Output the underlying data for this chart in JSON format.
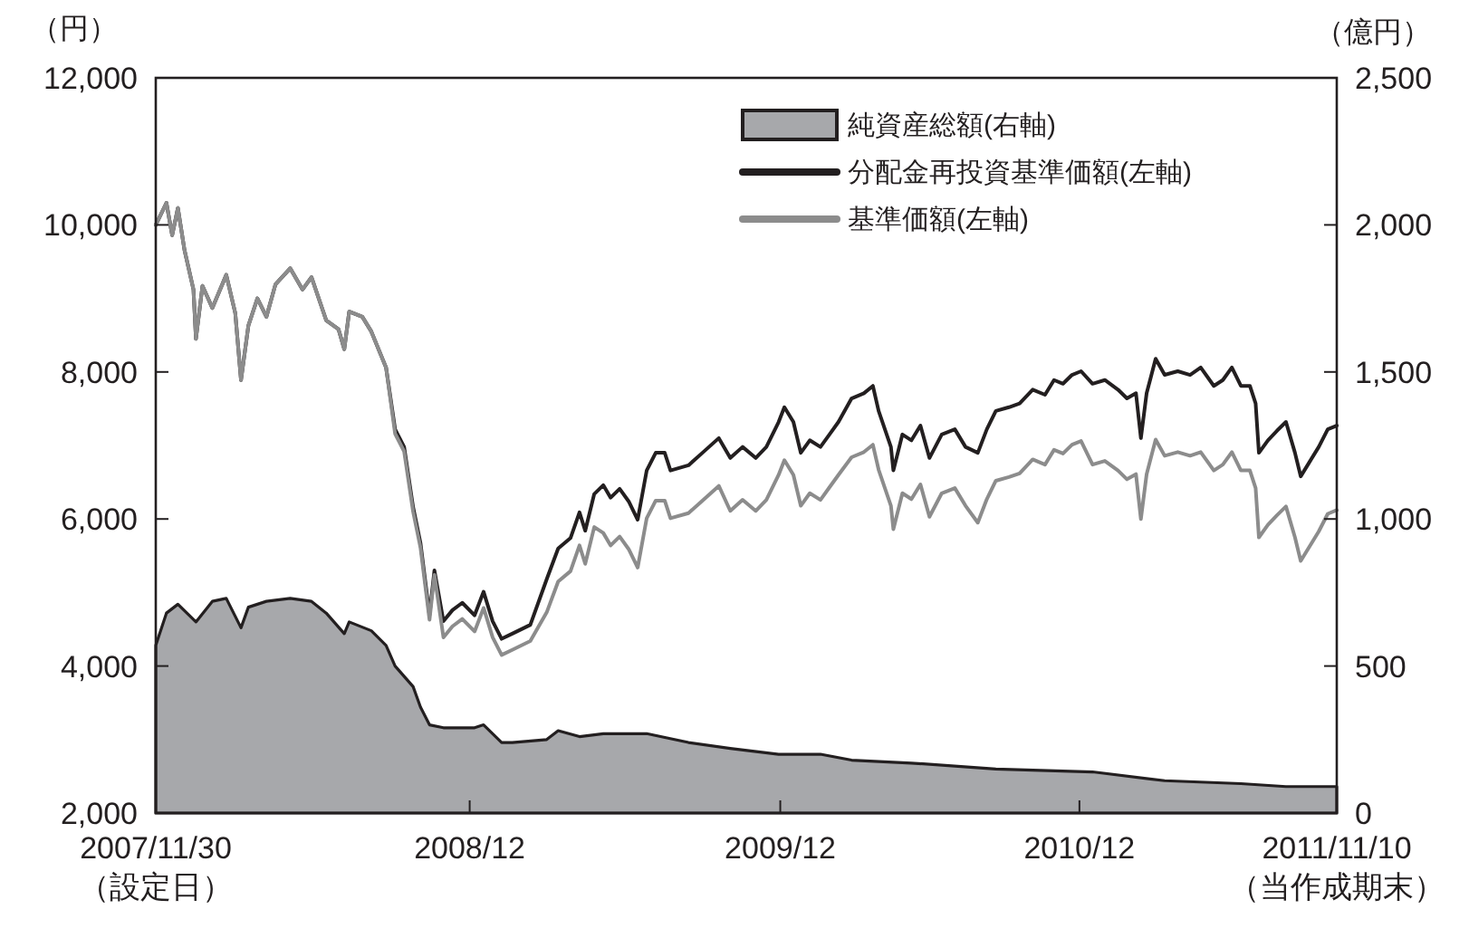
{
  "chart_data": {
    "type": "line",
    "ylabel": "（円）",
    "y2label": "（億円）",
    "x": [
      "2007-11-30",
      "2007-12-13",
      "2007-12-20",
      "2007-12-27",
      "2008-01-04",
      "2008-01-15",
      "2008-01-18",
      "2008-01-26",
      "2008-02-07",
      "2008-02-24",
      "2008-03-06",
      "2008-03-13",
      "2008-03-22",
      "2008-04-02",
      "2008-04-13",
      "2008-04-24",
      "2008-05-12",
      "2008-05-27",
      "2008-06-07",
      "2008-06-25",
      "2008-07-10",
      "2008-07-17",
      "2008-07-23",
      "2008-08-08",
      "2008-08-19",
      "2008-09-06",
      "2008-09-17",
      "2008-09-28",
      "2008-10-09",
      "2008-10-18",
      "2008-10-29",
      "2008-11-04",
      "2008-11-15",
      "2008-11-26",
      "2008-12-08",
      "2008-12-23",
      "2009-01-03",
      "2009-01-14",
      "2009-01-25",
      "2009-02-07",
      "2009-03-01",
      "2009-03-21",
      "2009-04-04",
      "2009-04-19",
      "2009-04-30",
      "2009-05-07",
      "2009-05-18",
      "2009-05-29",
      "2009-06-07",
      "2009-06-18",
      "2009-06-29",
      "2009-07-10",
      "2009-07-21",
      "2009-08-01",
      "2009-08-12",
      "2009-08-19",
      "2009-09-10",
      "2009-09-27",
      "2009-10-17",
      "2009-10-31",
      "2009-11-15",
      "2009-12-01",
      "2009-12-14",
      "2009-12-29",
      "2010-01-05",
      "2010-01-16",
      "2010-01-25",
      "2010-02-05",
      "2010-02-18",
      "2010-03-01",
      "2010-03-12",
      "2010-03-28",
      "2010-04-12",
      "2010-04-23",
      "2010-04-30",
      "2010-05-15",
      "2010-05-18",
      "2010-05-29",
      "2010-06-09",
      "2010-06-20",
      "2010-07-01",
      "2010-07-16",
      "2010-08-01",
      "2010-08-14",
      "2010-08-29",
      "2010-09-09",
      "2010-09-20",
      "2010-10-06",
      "2010-10-19",
      "2010-11-04",
      "2010-11-19",
      "2010-11-30",
      "2010-12-11",
      "2010-12-22",
      "2011-01-02",
      "2011-01-16",
      "2011-01-31",
      "2011-02-16",
      "2011-02-27",
      "2011-03-10",
      "2011-03-16",
      "2011-03-23",
      "2011-04-03",
      "2011-04-14",
      "2011-04-30",
      "2011-05-15",
      "2011-05-28",
      "2011-06-13",
      "2011-06-24",
      "2011-07-05",
      "2011-07-16",
      "2011-07-27",
      "2011-08-03",
      "2011-08-07",
      "2011-08-18",
      "2011-08-29",
      "2011-09-09",
      "2011-09-20",
      "2011-09-27",
      "2011-10-08",
      "2011-10-19",
      "2011-10-30",
      "2011-11-10"
    ],
    "xlim": [
      "2007-11-30",
      "2011-11-10"
    ],
    "xticks": [
      {
        "value": "2007-11-30",
        "label": "2007/11/30\n（設定日）"
      },
      {
        "value": "2008-12-17",
        "label": "2008/12"
      },
      {
        "value": "2009-12-31",
        "label": "2009/12"
      },
      {
        "value": "2010-12-31",
        "label": "2010/12"
      },
      {
        "value": "2011-11-10",
        "label": "2011/11/10\n（当作成期末）"
      }
    ],
    "ylim": [
      2000,
      12000
    ],
    "yticks": [
      {
        "value": 2000,
        "label": "2,000"
      },
      {
        "value": 4000,
        "label": "4,000"
      },
      {
        "value": 6000,
        "label": "6,000"
      },
      {
        "value": 8000,
        "label": "8,000"
      },
      {
        "value": 10000,
        "label": "10,000"
      },
      {
        "value": 12000,
        "label": "12,000"
      }
    ],
    "y2lim": [
      0,
      2500
    ],
    "y2ticks": [
      0,
      500,
      {
        "value": 1000,
        "label": "1,000"
      },
      {
        "value": 1500,
        "label": "1,500"
      },
      {
        "value": 2000,
        "label": "2,000"
      },
      {
        "value": 2500,
        "label": "2,500"
      }
    ],
    "legend": "top right",
    "series": [
      {
        "name": "純資産総額(右軸)",
        "type": "area",
        "axis": "y2",
        "color": "#a7a8ab",
        "x": [
          "2007-11-30",
          "2007-12-13",
          "2007-12-27",
          "2008-01-18",
          "2008-02-07",
          "2008-02-24",
          "2008-03-13",
          "2008-03-22",
          "2008-04-13",
          "2008-05-12",
          "2008-06-07",
          "2008-06-25",
          "2008-07-17",
          "2008-07-23",
          "2008-08-19",
          "2008-09-06",
          "2008-09-17",
          "2008-10-09",
          "2008-10-18",
          "2008-10-29",
          "2008-11-15",
          "2008-12-23",
          "2009-01-03",
          "2009-01-25",
          "2009-02-07",
          "2009-03-21",
          "2009-04-04",
          "2009-04-30",
          "2009-05-29",
          "2009-07-21",
          "2009-09-10",
          "2009-10-31",
          "2009-12-29",
          "2010-02-18",
          "2010-03-28",
          "2010-06-09",
          "2010-09-20",
          "2011-01-16",
          "2011-04-14",
          "2011-07-16",
          "2011-09-09",
          "2011-10-19",
          "2011-11-10"
        ],
        "values": [
          570,
          680,
          710,
          650,
          720,
          730,
          630,
          700,
          720,
          730,
          720,
          680,
          610,
          650,
          620,
          570,
          500,
          430,
          360,
          300,
          290,
          290,
          300,
          240,
          240,
          250,
          280,
          260,
          270,
          270,
          240,
          220,
          200,
          200,
          180,
          170,
          150,
          140,
          110,
          100,
          90,
          90,
          90
        ]
      },
      {
        "name": "分配金再投資基準価額(左軸)",
        "axis": "y",
        "color": "#231f20",
        "values": [
          10000,
          10300,
          9860,
          10230,
          9660,
          9120,
          8450,
          9170,
          8870,
          9320,
          8800,
          7890,
          8630,
          9000,
          8750,
          9190,
          9410,
          9120,
          9290,
          8700,
          8580,
          8310,
          8820,
          8750,
          8550,
          8060,
          7220,
          6980,
          6160,
          5670,
          4690,
          5300,
          4610,
          4760,
          4860,
          4690,
          5010,
          4610,
          4370,
          4440,
          4560,
          5180,
          5600,
          5740,
          6090,
          5840,
          6340,
          6460,
          6290,
          6410,
          6240,
          5990,
          6660,
          6900,
          6900,
          6660,
          6730,
          6900,
          7100,
          6830,
          6980,
          6830,
          6980,
          7320,
          7520,
          7320,
          6900,
          7070,
          6980,
          7150,
          7320,
          7640,
          7710,
          7810,
          7470,
          6980,
          6660,
          7150,
          7070,
          7270,
          6830,
          7150,
          7220,
          6980,
          6900,
          7220,
          7470,
          7520,
          7570,
          7760,
          7690,
          7890,
          7840,
          7960,
          8010,
          7840,
          7890,
          7760,
          7640,
          7710,
          7100,
          7710,
          8180,
          7960,
          8010,
          7960,
          8060,
          7810,
          7890,
          8060,
          7810,
          7810,
          7570,
          6900,
          7070,
          7200,
          7320,
          6900,
          6580,
          6780,
          6980,
          7220,
          7270
        ]
      },
      {
        "name": "基準価額(左軸)",
        "axis": "y",
        "color": "#8c8c8c",
        "values": [
          10000,
          10300,
          9860,
          10230,
          9660,
          9120,
          8450,
          9170,
          8870,
          9320,
          8800,
          7890,
          8630,
          9000,
          8750,
          9190,
          9410,
          9120,
          9290,
          8700,
          8580,
          8310,
          8820,
          8750,
          8550,
          8060,
          7160,
          6920,
          6100,
          5610,
          4630,
          5240,
          4390,
          4540,
          4640,
          4470,
          4790,
          4390,
          4150,
          4220,
          4340,
          4730,
          5150,
          5290,
          5640,
          5390,
          5890,
          5810,
          5640,
          5760,
          5590,
          5340,
          6010,
          6250,
          6250,
          6010,
          6080,
          6250,
          6450,
          6110,
          6260,
          6110,
          6260,
          6600,
          6800,
          6600,
          6180,
          6350,
          6260,
          6430,
          6600,
          6840,
          6910,
          7010,
          6670,
          6180,
          5860,
          6350,
          6270,
          6470,
          6030,
          6350,
          6420,
          6180,
          5950,
          6270,
          6520,
          6570,
          6620,
          6810,
          6740,
          6940,
          6890,
          7010,
          7060,
          6740,
          6790,
          6660,
          6540,
          6610,
          6000,
          6610,
          7080,
          6860,
          6910,
          6860,
          6910,
          6660,
          6740,
          6910,
          6660,
          6660,
          6420,
          5750,
          5920,
          6050,
          6170,
          5750,
          5430,
          5630,
          5830,
          6070,
          6120
        ]
      }
    ]
  }
}
